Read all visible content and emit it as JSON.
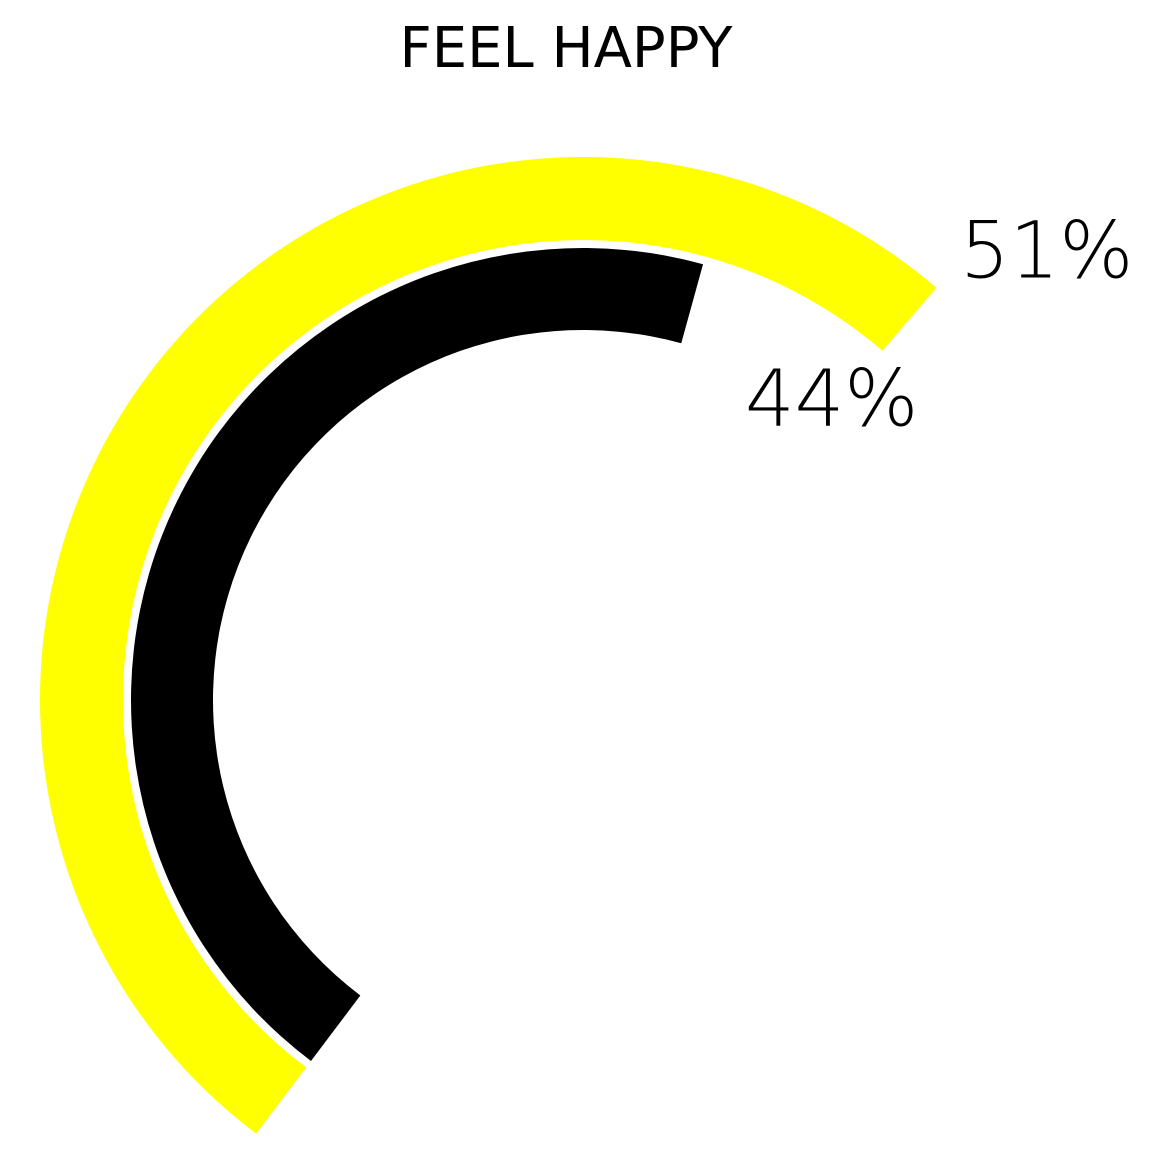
{
  "chart_data": {
    "type": "radial_bar",
    "title": "FEEL HAPPY",
    "values": [
      51,
      44
    ],
    "value_labels": [
      "51%",
      "44%"
    ],
    "colors": [
      "#ffff00",
      "#000000"
    ]
  }
}
